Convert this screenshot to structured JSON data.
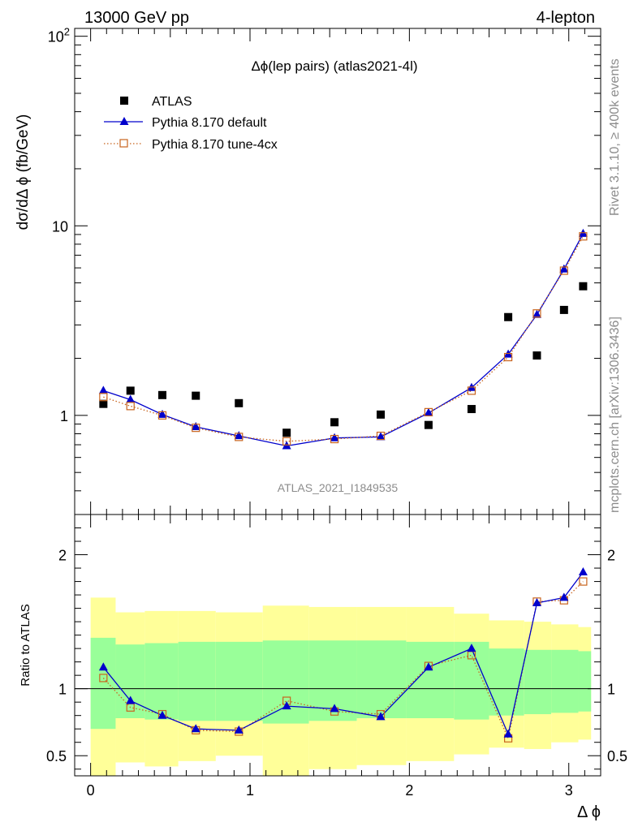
{
  "header": {
    "left": "13000 GeV pp",
    "right": "4-lepton"
  },
  "side_labels": {
    "rivet": "Rivet 3.1.10, ≥ 400k events",
    "mcplots": "mcplots.cern.ch [arXiv:1306.3436]"
  },
  "chart_data": [
    {
      "type": "scatter",
      "panel": "main",
      "title": "Δϕ(lep pairs) (atlas2021-4l)",
      "watermark": "ATLAS_2021_I1849535",
      "ylabel": "dσ/dΔ ϕ (fb/GeV)",
      "xlabel": "",
      "yscale": "log",
      "xlim": [
        -0.1,
        3.2
      ],
      "ylim": [
        0.3,
        110
      ],
      "yticks": [
        {
          "value": 1,
          "label": "1"
        },
        {
          "value": 10,
          "label": "10"
        },
        {
          "value": 100,
          "label": "10",
          "sup": "2"
        }
      ],
      "legend_position": "top-left",
      "series": [
        {
          "name": "ATLAS",
          "marker": "square",
          "color": "#000000",
          "x": [
            0.08,
            0.25,
            0.45,
            0.66,
            0.93,
            1.23,
            1.53,
            1.82,
            2.12,
            2.39,
            2.62,
            2.8,
            2.97,
            3.09
          ],
          "y": [
            1.15,
            1.35,
            1.28,
            1.27,
            1.16,
            0.81,
            0.92,
            1.01,
            0.89,
            1.08,
            3.3,
            2.07,
            3.6,
            4.8
          ]
        },
        {
          "name": "Pythia 8.170 default",
          "marker": "triangle",
          "line": "solid",
          "color": "#0000cc",
          "x": [
            0.08,
            0.25,
            0.45,
            0.66,
            0.93,
            1.23,
            1.53,
            1.82,
            2.12,
            2.39,
            2.62,
            2.8,
            2.97,
            3.09
          ],
          "y": [
            1.35,
            1.21,
            1.01,
            0.87,
            0.78,
            0.69,
            0.76,
            0.77,
            1.03,
            1.4,
            2.1,
            3.4,
            5.9,
            9.1
          ]
        },
        {
          "name": "Pythia 8.170 tune-4cx",
          "marker": "open-square",
          "line": "dotted",
          "color": "#c8641e",
          "x": [
            0.08,
            0.25,
            0.45,
            0.66,
            0.93,
            1.23,
            1.53,
            1.82,
            2.12,
            2.39,
            2.62,
            2.8,
            2.97,
            3.09
          ],
          "y": [
            1.25,
            1.12,
            1.0,
            0.86,
            0.77,
            0.73,
            0.75,
            0.78,
            1.04,
            1.35,
            2.03,
            3.45,
            5.8,
            8.8
          ]
        }
      ]
    },
    {
      "type": "line",
      "panel": "ratio",
      "ylabel": "Ratio to ATLAS",
      "xlabel": "Δ ϕ",
      "xlim": [
        -0.1,
        3.2
      ],
      "ylim": [
        0.35,
        2.3
      ],
      "xticks": [
        {
          "value": 0,
          "label": "0"
        },
        {
          "value": 1,
          "label": "1"
        },
        {
          "value": 2,
          "label": "2"
        },
        {
          "value": 3,
          "label": "3"
        }
      ],
      "yticks": [
        {
          "value": 0.5,
          "label": "0.5"
        },
        {
          "value": 1,
          "label": "1"
        },
        {
          "value": 2,
          "label": "2"
        }
      ],
      "reference_line": 1,
      "bin_edges": [
        0,
        0.157,
        0.34,
        0.55,
        0.785,
        1.08,
        1.37,
        1.67,
        1.98,
        2.28,
        2.5,
        2.72,
        2.89,
        3.06,
        3.14
      ],
      "band_green_lo": [
        0.7,
        0.78,
        0.77,
        0.76,
        0.76,
        0.74,
        0.76,
        0.78,
        0.78,
        0.77,
        0.8,
        0.81,
        0.82,
        0.83
      ],
      "band_green_hi": [
        1.38,
        1.33,
        1.34,
        1.35,
        1.35,
        1.36,
        1.36,
        1.36,
        1.35,
        1.35,
        1.3,
        1.29,
        1.29,
        1.28
      ],
      "band_yellow_lo": [
        0.35,
        0.45,
        0.42,
        0.46,
        0.5,
        0.35,
        0.4,
        0.43,
        0.46,
        0.51,
        0.56,
        0.55,
        0.6,
        0.62
      ],
      "band_yellow_hi": [
        1.68,
        1.57,
        1.58,
        1.58,
        1.57,
        1.62,
        1.61,
        1.61,
        1.61,
        1.56,
        1.51,
        1.5,
        1.48,
        1.46
      ],
      "series": [
        {
          "name": "Pythia 8.170 default",
          "marker": "triangle",
          "line": "solid",
          "color": "#0000cc",
          "x": [
            0.08,
            0.25,
            0.45,
            0.66,
            0.93,
            1.23,
            1.53,
            1.82,
            2.12,
            2.39,
            2.62,
            2.8,
            2.97,
            3.09
          ],
          "y": [
            1.16,
            0.91,
            0.8,
            0.7,
            0.69,
            0.87,
            0.85,
            0.79,
            1.16,
            1.3,
            0.66,
            1.64,
            1.68,
            1.87
          ]
        },
        {
          "name": "Pythia 8.170 tune-4cx",
          "marker": "open-square",
          "line": "dotted",
          "color": "#c8641e",
          "x": [
            0.08,
            0.25,
            0.45,
            0.66,
            0.93,
            1.23,
            1.53,
            1.82,
            2.12,
            2.39,
            2.62,
            2.8,
            2.97,
            3.09
          ],
          "y": [
            1.08,
            0.86,
            0.81,
            0.69,
            0.68,
            0.91,
            0.83,
            0.81,
            1.17,
            1.25,
            0.63,
            1.65,
            1.66,
            1.8
          ]
        }
      ]
    }
  ]
}
